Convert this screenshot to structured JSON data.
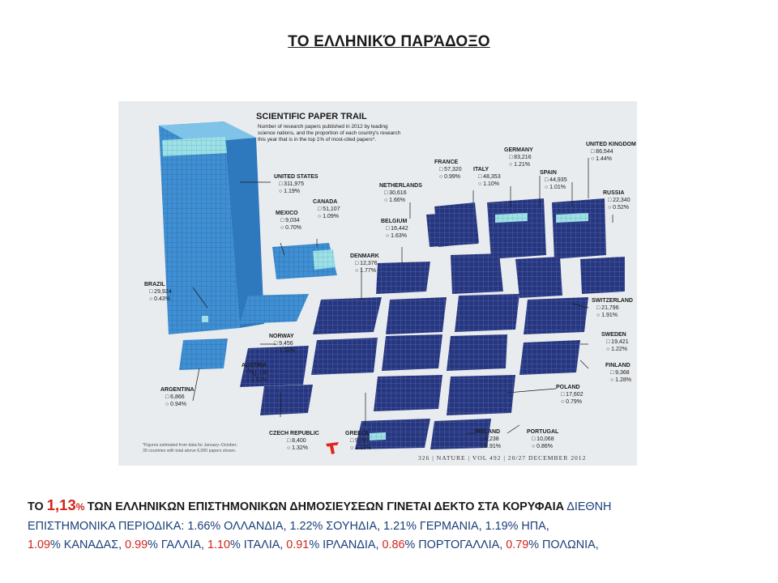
{
  "slide": {
    "title": "ΤΟ ΕΛΛΗΝΙΚΌ ΠΑΡΆΔΟΞΟ"
  },
  "figure": {
    "title": "SCIENTIFIC PAPER TRAIL",
    "subtitle_1": "Number of research papers published in 2012 by leading",
    "subtitle_2": "science nations, and the proportion of each country's research",
    "subtitle_3": "this year that is in the top 1% of most-cited papers*.",
    "footnote_1": "*Figures estimated from data for January–October;",
    "footnote_2": "39 countries with total above 6,000 papers shown.",
    "source_line": "326 | NATURE | VOL 492 | 20/27 DECEMBER 2012",
    "colors": {
      "americas_block": "#3f8fd2",
      "europe_block": "#27377f",
      "top1_highlight": "#9fe0e6"
    },
    "countries": [
      {
        "name": "UNITED STATES",
        "papers": "311,975",
        "top": "1.19%"
      },
      {
        "name": "CANADA",
        "papers": "51,107",
        "top": "1.09%"
      },
      {
        "name": "MEXICO",
        "papers": "9,034",
        "top": "0.70%"
      },
      {
        "name": "BRAZIL",
        "papers": "29,924",
        "top": "0.43%"
      },
      {
        "name": "ARGENTINA",
        "papers": "6,866",
        "top": "0.94%"
      },
      {
        "name": "NETHERLANDS",
        "papers": "30,616",
        "top": "1.66%"
      },
      {
        "name": "FRANCE",
        "papers": "57,320",
        "top": "0.99%"
      },
      {
        "name": "ITALY",
        "papers": "48,353",
        "top": "1.10%"
      },
      {
        "name": "GERMANY",
        "papers": "83,216",
        "top": "1.21%"
      },
      {
        "name": "UNITED KINGDOM",
        "papers": "86,544",
        "top": "1.44%"
      },
      {
        "name": "SPAIN",
        "papers": "44,935",
        "top": "1.01%"
      },
      {
        "name": "RUSSIA",
        "papers": "22,340",
        "top": "0.52%"
      },
      {
        "name": "BELGIUM",
        "papers": "16,442",
        "top": "1.63%"
      },
      {
        "name": "DENMARK",
        "papers": "12,376",
        "top": "1.77%"
      },
      {
        "name": "SWITZERLAND",
        "papers": "21,796",
        "top": "1.91%"
      },
      {
        "name": "SWEDEN",
        "papers": "19,421",
        "top": "1.22%"
      },
      {
        "name": "NORWAY",
        "papers": "9,456",
        "top": "1.33%"
      },
      {
        "name": "AUSTRIA",
        "papers": "11,132",
        "top": "1.52%"
      },
      {
        "name": "FINLAND",
        "papers": "9,368",
        "top": "1.28%"
      },
      {
        "name": "POLAND",
        "papers": "17,602",
        "top": "0.79%"
      },
      {
        "name": "CZECH REPUBLIC",
        "papers": "8,400",
        "top": "1.32%"
      },
      {
        "name": "GREECE",
        "papers": "9,281",
        "top": "1.13%"
      },
      {
        "name": "IRELAND",
        "papers": "6,238",
        "top": "0.91%"
      },
      {
        "name": "PORTUGAL",
        "papers": "10,068",
        "top": "0.86%"
      }
    ]
  },
  "caption": {
    "l1_a": "ΤΟ ",
    "l1_big": "1,13",
    "l1_pct": "% ",
    "l1_b": "ΤΩΝ ΕΛΛΗΝΙΚΩΝ ΕΠΙΣΤΗΜΟΝΙΚΩΝ ΔΗΜΟΣΙΕΥΣΕΩΝ ΓΙΝΕΤΑΙ ΔΕΚΤΟ ΣΤΑ ΚΟΡΥΦΑΙΑ",
    "l1_c": " ΔΙΕΘΝΗ",
    "l2": "ΕΠΙΣΤΗΜΟΝΙΚΑ ΠΕΡΙΟΔΙΚΑ: 1.66% ΟΛΛΑΝΔΙΑ, 1.22% ΣΟΥΗΔΙΑ, 1.21% ΓΕΡΜΑΝΙΑ, 1.19% ΗΠΑ,",
    "l3_1v": "1.09",
    "l3_1t": "% ΚΑΝΑΔΑΣ, ",
    "l3_2v": "0.99",
    "l3_2t": "% ΓΑΛΛΙΑ, ",
    "l3_3v": "1.10",
    "l3_3t": "% ΙΤΑΛΙΑ, ",
    "l3_4v": "0.91",
    "l3_4t": "% ΙΡΛΑΝΔΙΑ, ",
    "l3_5v": "0.86",
    "l3_5t": "% ΠΟΡΤΟΓΑΛΛΙΑ, ",
    "l3_6v": "0.79",
    "l3_6t": "% ΠΟΛΩΝΙΑ,"
  }
}
